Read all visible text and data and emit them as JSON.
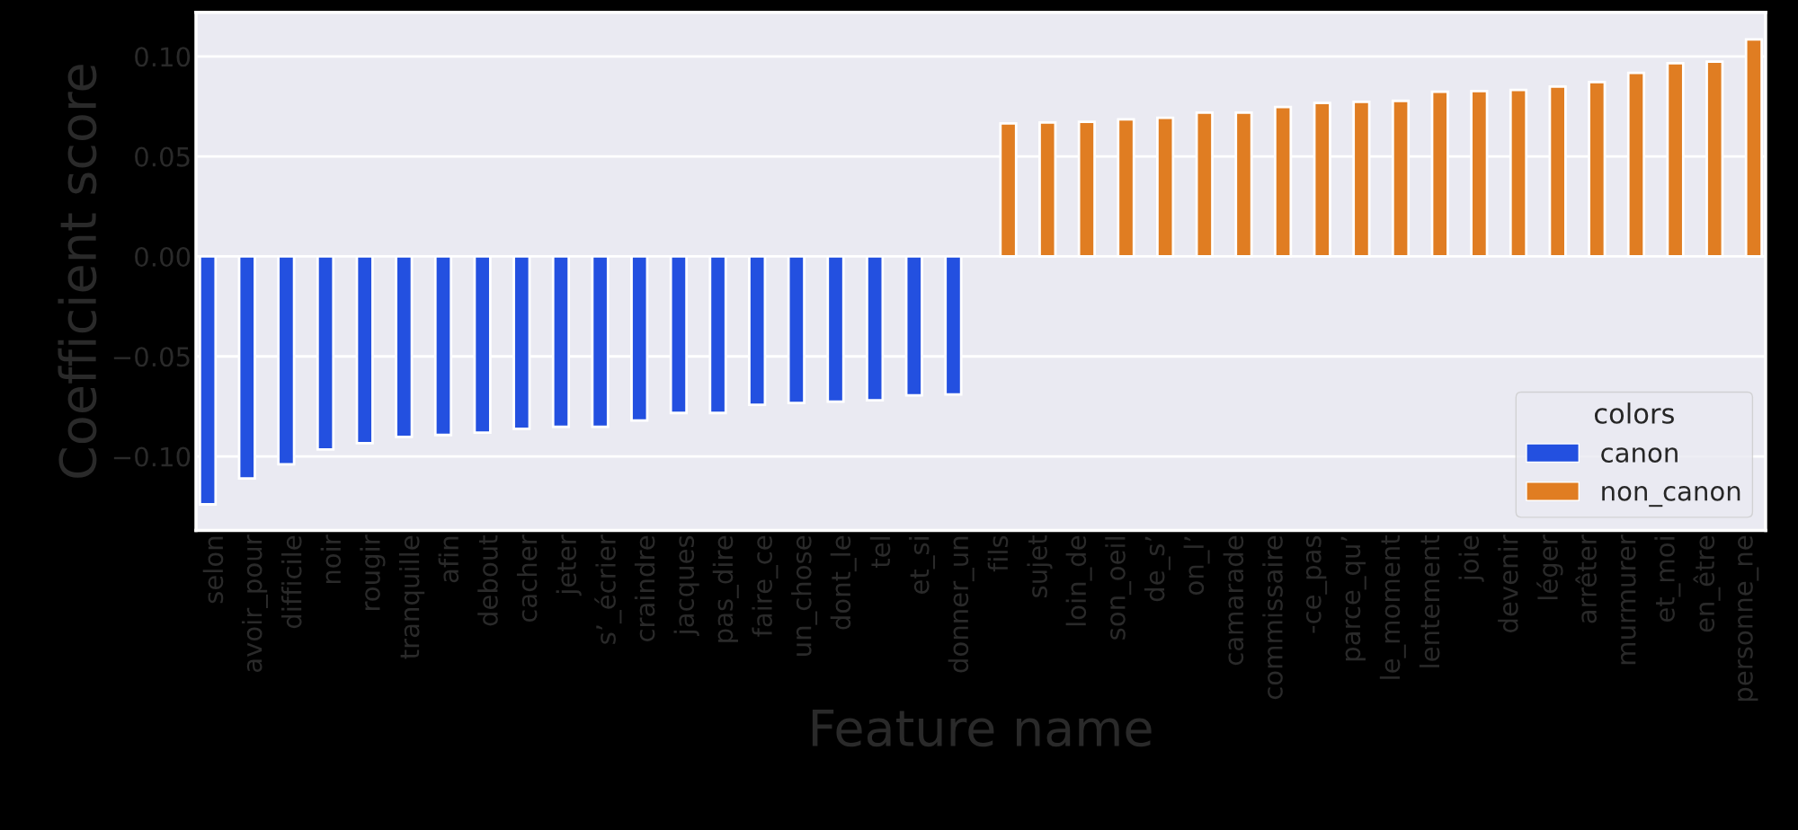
{
  "chart_data": {
    "type": "bar",
    "xlabel": "Feature name",
    "ylabel": "Coefficient score",
    "legend_title": "colors",
    "categories": [
      "selon",
      "avoir_pour",
      "difficile",
      "noir",
      "rougir",
      "tranquille",
      "afin",
      "debout",
      "cacher",
      "jeter",
      "s’_écrier",
      "craindre",
      "jacques",
      "pas_dire",
      "faire_ce",
      "un_chose",
      "dont_le",
      "tel",
      "et_si",
      "donner_un",
      "fils",
      "sujet",
      "loin_de",
      "son_oeil",
      "de_s’",
      "on_l’",
      "camarade",
      "commissaire",
      "-ce_pas",
      "parce_qu’",
      "le_moment",
      "lentement",
      "joie",
      "devenir",
      "léger",
      "arrêter",
      "murmurer",
      "et_moi",
      "en_être",
      "personne_ne"
    ],
    "series": [
      {
        "name": "canon",
        "color": "#2350e0",
        "values": [
          -0.124,
          -0.111,
          -0.104,
          -0.0965,
          -0.0934,
          -0.0903,
          -0.0893,
          -0.0881,
          -0.0862,
          -0.0852,
          -0.0852,
          -0.0821,
          -0.0783,
          -0.0783,
          -0.0742,
          -0.0733,
          -0.0726,
          -0.072,
          -0.0695,
          -0.069,
          null,
          null,
          null,
          null,
          null,
          null,
          null,
          null,
          null,
          null,
          null,
          null,
          null,
          null,
          null,
          null,
          null,
          null,
          null,
          null
        ]
      },
      {
        "name": "non_canon",
        "color": "#e07d22",
        "values": [
          null,
          null,
          null,
          null,
          null,
          null,
          null,
          null,
          null,
          null,
          null,
          null,
          null,
          null,
          null,
          null,
          null,
          null,
          null,
          null,
          0.0665,
          0.067,
          0.0673,
          0.0685,
          0.0693,
          0.0719,
          0.0719,
          0.0747,
          0.0767,
          0.0773,
          0.0778,
          0.0824,
          0.0827,
          0.0832,
          0.0849,
          0.0872,
          0.0918,
          0.0966,
          0.0974,
          0.1085
        ]
      }
    ],
    "ylim": [
      -0.137,
      0.122
    ],
    "yticks": [
      {
        "value": -0.1,
        "label": "−0.10"
      },
      {
        "value": -0.05,
        "label": "−0.05"
      },
      {
        "value": 0,
        "label": "0.00"
      },
      {
        "value": 0.05,
        "label": "0.05"
      },
      {
        "value": 0.1,
        "label": "0.10"
      }
    ],
    "grid": "y",
    "legend": "lower right"
  }
}
